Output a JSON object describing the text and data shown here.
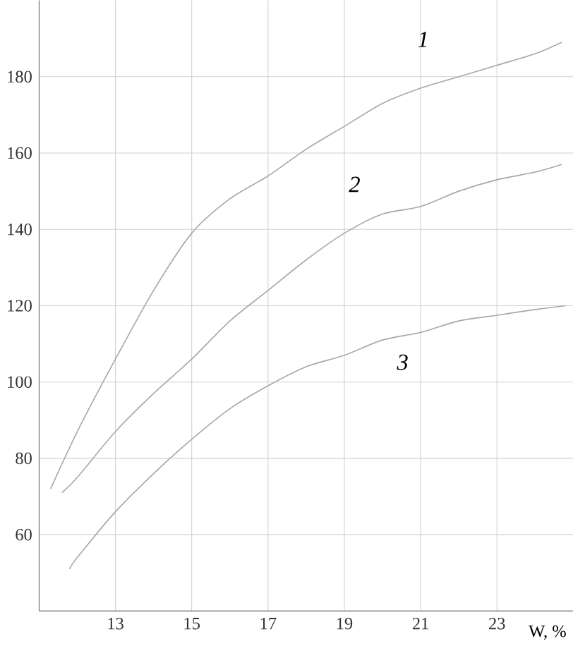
{
  "chart_data": {
    "type": "line",
    "xlabel": "W, %",
    "xlim": [
      11,
      25
    ],
    "xticks": [
      13,
      15,
      17,
      19,
      21,
      23
    ],
    "ylim": [
      40,
      200
    ],
    "yticks": [
      60,
      80,
      100,
      120,
      140,
      160,
      180
    ],
    "grid": true,
    "legend": false,
    "marker": "none",
    "line_style": "solid",
    "series": [
      {
        "name": "*1*",
        "color": "#a8a8a8",
        "x": [
          11.3,
          12,
          13,
          14,
          15,
          16,
          17,
          18,
          19,
          20,
          21,
          22,
          23,
          24,
          24.7
        ],
        "values": [
          72,
          87,
          106,
          124,
          139,
          148,
          154,
          161,
          167,
          173,
          177,
          180,
          183,
          186,
          189
        ]
      },
      {
        "name": "*2*",
        "color": "#a8a8a8",
        "x": [
          11.6,
          12,
          13,
          14,
          15,
          16,
          17,
          18,
          19,
          20,
          21,
          22,
          23,
          24,
          24.7
        ],
        "values": [
          71,
          75,
          87,
          97,
          106,
          116,
          124,
          132,
          139,
          144,
          146,
          150,
          153,
          155,
          157
        ]
      },
      {
        "name": "*3*",
        "color": "#a8a8a8",
        "x": [
          11.8,
          12,
          13,
          14,
          15,
          16,
          17,
          18,
          19,
          20,
          21,
          22,
          23,
          24,
          24.8
        ],
        "values": [
          51,
          54,
          66,
          76,
          85,
          93,
          99,
          104,
          107,
          111,
          113,
          116,
          117.5,
          119,
          120
        ]
      }
    ]
  }
}
